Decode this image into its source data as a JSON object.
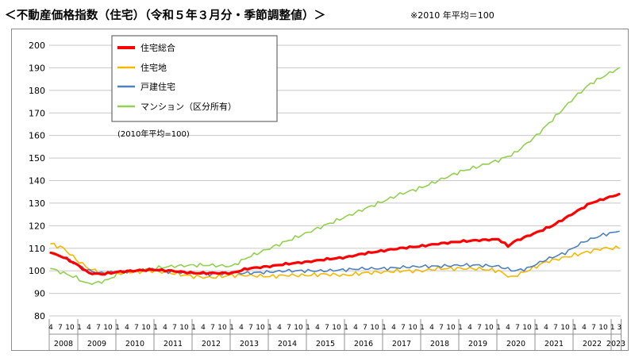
{
  "header": {
    "title": "＜不動産価格指数（住宅）（令和５年３月分・季節調整値）＞",
    "note": "※2010 年平均＝100"
  },
  "chart_data": {
    "type": "line",
    "ylim": [
      80,
      200
    ],
    "yticks": [
      80,
      90,
      100,
      110,
      120,
      130,
      140,
      150,
      160,
      170,
      180,
      190,
      200
    ],
    "grid": "horizontal",
    "legend_position": "top-left",
    "annotation": "(2010年平均=100)",
    "x_start": "2008-04",
    "x_end": "2023-03",
    "month_tick_labels": [
      "4",
      "7",
      "10",
      "1"
    ],
    "years": [
      "2008",
      "2009",
      "2010",
      "2011",
      "2012",
      "2013",
      "2014",
      "2015",
      "2016",
      "2017",
      "2018",
      "2019",
      "2020",
      "2021",
      "2022",
      "2023"
    ],
    "final_year_labels": "1 3",
    "series": [
      {
        "name": "住宅総合",
        "color": "#ff0000",
        "knots": [
          [
            "2008-04",
            108
          ],
          [
            "2008-08",
            106
          ],
          [
            "2008-12",
            103
          ],
          [
            "2009-04",
            99
          ],
          [
            "2009-08",
            98.5
          ],
          [
            "2010-01",
            99.5
          ],
          [
            "2010-06",
            100
          ],
          [
            "2010-12",
            100.5
          ],
          [
            "2011-06",
            100
          ],
          [
            "2012-01",
            99
          ],
          [
            "2012-06",
            99
          ],
          [
            "2013-01",
            99
          ],
          [
            "2013-06",
            101
          ],
          [
            "2014-01",
            102
          ],
          [
            "2014-06",
            103
          ],
          [
            "2015-01",
            104
          ],
          [
            "2015-06",
            105
          ],
          [
            "2016-01",
            106
          ],
          [
            "2016-06",
            107.5
          ],
          [
            "2017-01",
            109
          ],
          [
            "2017-06",
            110
          ],
          [
            "2018-01",
            111
          ],
          [
            "2018-06",
            112
          ],
          [
            "2019-01",
            113
          ],
          [
            "2019-06",
            113.5
          ],
          [
            "2020-01",
            114
          ],
          [
            "2020-04",
            111
          ],
          [
            "2020-06",
            113
          ],
          [
            "2021-01",
            117
          ],
          [
            "2021-06",
            120
          ],
          [
            "2021-12",
            125
          ],
          [
            "2022-06",
            130
          ],
          [
            "2023-03",
            134
          ]
        ]
      },
      {
        "name": "住宅地",
        "color": "#f5b800",
        "knots": [
          [
            "2008-04",
            112
          ],
          [
            "2008-08",
            110
          ],
          [
            "2008-12",
            105
          ],
          [
            "2009-04",
            101
          ],
          [
            "2009-08",
            99
          ],
          [
            "2010-01",
            99
          ],
          [
            "2010-06",
            99.5
          ],
          [
            "2010-12",
            100
          ],
          [
            "2011-06",
            99
          ],
          [
            "2012-01",
            97.5
          ],
          [
            "2012-06",
            97
          ],
          [
            "2013-01",
            98
          ],
          [
            "2013-06",
            98
          ],
          [
            "2014-01",
            97.5
          ],
          [
            "2014-06",
            98
          ],
          [
            "2015-01",
            98
          ],
          [
            "2015-06",
            98.5
          ],
          [
            "2016-01",
            98
          ],
          [
            "2016-06",
            99
          ],
          [
            "2017-01",
            99.5
          ],
          [
            "2017-06",
            100
          ],
          [
            "2018-01",
            100
          ],
          [
            "2018-06",
            101
          ],
          [
            "2019-01",
            101
          ],
          [
            "2019-06",
            101
          ],
          [
            "2020-01",
            100
          ],
          [
            "2020-05",
            97
          ],
          [
            "2020-10",
            100
          ],
          [
            "2021-04",
            104
          ],
          [
            "2021-10",
            106
          ],
          [
            "2022-04",
            108
          ],
          [
            "2022-10",
            110
          ],
          [
            "2023-03",
            110
          ]
        ]
      },
      {
        "name": "戸建住宅",
        "color": "#4f81bd",
        "knots": [
          [
            "2008-04",
            108
          ],
          [
            "2008-08",
            106
          ],
          [
            "2008-12",
            103
          ],
          [
            "2009-04",
            100
          ],
          [
            "2009-08",
            99
          ],
          [
            "2010-01",
            99.5
          ],
          [
            "2010-06",
            100
          ],
          [
            "2010-12",
            100.5
          ],
          [
            "2011-06",
            99.5
          ],
          [
            "2012-01",
            99
          ],
          [
            "2012-06",
            98.5
          ],
          [
            "2013-01",
            99
          ],
          [
            "2013-06",
            99
          ],
          [
            "2014-01",
            99.5
          ],
          [
            "2014-06",
            100
          ],
          [
            "2015-01",
            100
          ],
          [
            "2015-06",
            100
          ],
          [
            "2016-01",
            100.5
          ],
          [
            "2016-06",
            101
          ],
          [
            "2017-01",
            101
          ],
          [
            "2017-06",
            101.5
          ],
          [
            "2018-01",
            102
          ],
          [
            "2018-06",
            102
          ],
          [
            "2019-01",
            102.5
          ],
          [
            "2019-06",
            102.5
          ],
          [
            "2020-01",
            102
          ],
          [
            "2020-06",
            100
          ],
          [
            "2020-10",
            101
          ],
          [
            "2021-04",
            105
          ],
          [
            "2021-10",
            108
          ],
          [
            "2022-04",
            113
          ],
          [
            "2022-10",
            116
          ],
          [
            "2023-03",
            117.5
          ]
        ]
      },
      {
        "name": "マンション（区分所有）",
        "color": "#92d050",
        "knots": [
          [
            "2008-04",
            101
          ],
          [
            "2008-08",
            99
          ],
          [
            "2008-12",
            97
          ],
          [
            "2009-03",
            94.5
          ],
          [
            "2009-06",
            94.5
          ],
          [
            "2009-10",
            96
          ],
          [
            "2010-01",
            98.5
          ],
          [
            "2010-06",
            100
          ],
          [
            "2010-12",
            101
          ],
          [
            "2011-06",
            102
          ],
          [
            "2012-01",
            102.5
          ],
          [
            "2012-06",
            102.5
          ],
          [
            "2013-01",
            102
          ],
          [
            "2013-06",
            106
          ],
          [
            "2014-01",
            110
          ],
          [
            "2014-06",
            113
          ],
          [
            "2015-01",
            117
          ],
          [
            "2015-06",
            120
          ],
          [
            "2016-01",
            124
          ],
          [
            "2016-06",
            127
          ],
          [
            "2017-01",
            131
          ],
          [
            "2017-06",
            134
          ],
          [
            "2018-01",
            137
          ],
          [
            "2018-06",
            140
          ],
          [
            "2019-01",
            144
          ],
          [
            "2019-06",
            146
          ],
          [
            "2020-01",
            149
          ],
          [
            "2020-06",
            152
          ],
          [
            "2021-01",
            160
          ],
          [
            "2021-06",
            167
          ],
          [
            "2022-01",
            177
          ],
          [
            "2022-06",
            183
          ],
          [
            "2023-03",
            190
          ]
        ]
      }
    ]
  }
}
